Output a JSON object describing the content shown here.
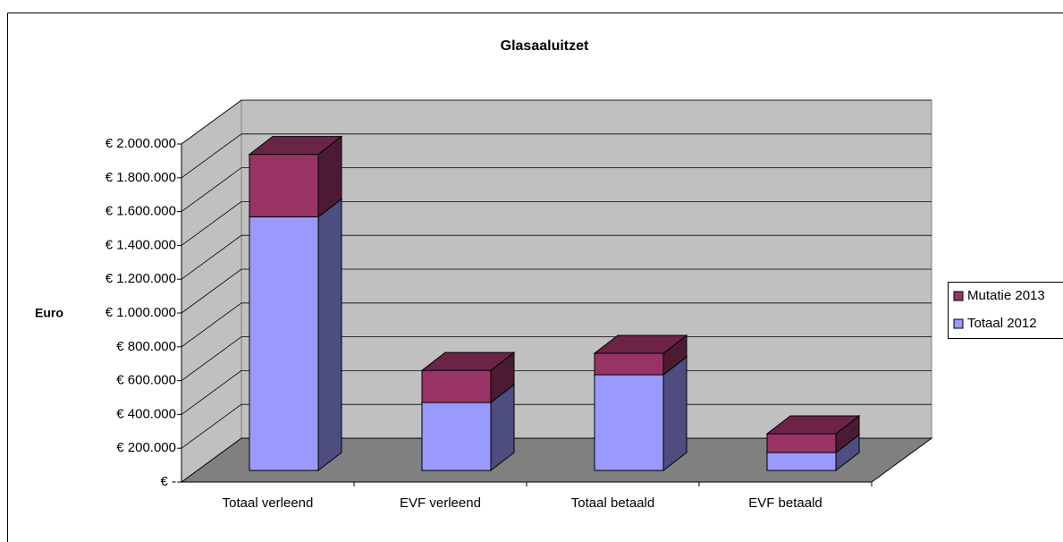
{
  "chart_data": {
    "type": "bar3d_stacked",
    "title": "Glasaaluitzet",
    "y_label": "Euro",
    "categories": [
      "Totaal verleend",
      "EVF verleend",
      "Totaal betaald",
      "EVF betaald"
    ],
    "series": [
      {
        "name": "Totaal 2012",
        "color": "#9999ff",
        "values": [
          1500000,
          402000,
          566000,
          106000
        ]
      },
      {
        "name": "Mutatie 2013",
        "color": "#993366",
        "values": [
          370000,
          190000,
          127000,
          111000
        ]
      }
    ],
    "ylim": [
      0,
      2000000
    ],
    "yticks": [
      {
        "value": 0,
        "label": "€ -"
      },
      {
        "value": 200000,
        "label": "€ 200.000"
      },
      {
        "value": 400000,
        "label": "€ 400.000"
      },
      {
        "value": 600000,
        "label": "€ 600.000"
      },
      {
        "value": 800000,
        "label": "€ 800.000"
      },
      {
        "value": 1000000,
        "label": "€ 1.000.000"
      },
      {
        "value": 1200000,
        "label": "€ 1.200.000"
      },
      {
        "value": 1400000,
        "label": "€ 1.400.000"
      },
      {
        "value": 1600000,
        "label": "€ 1.600.000"
      },
      {
        "value": 1800000,
        "label": "€ 1.800.000"
      },
      {
        "value": 2000000,
        "label": "€ 2.000.000"
      }
    ],
    "grid": true,
    "legend": "right"
  }
}
